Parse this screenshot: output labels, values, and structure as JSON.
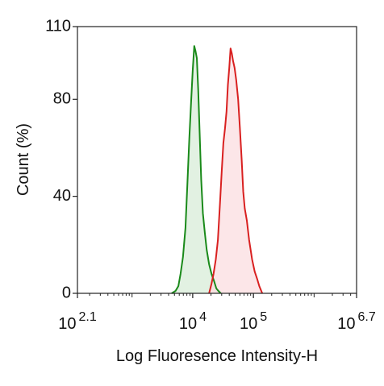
{
  "chart_data": {
    "type": "area",
    "xlabel": "Log Fluoresence Intensity-H",
    "ylabel": "Count  (%)",
    "x_scale": "log",
    "xlim": [
      125.9,
      5011872
    ],
    "ylim": [
      0,
      110
    ],
    "x_ticks": [
      {
        "value": 125.9,
        "base": "10",
        "exp": "2.1"
      },
      {
        "value": 10000,
        "base": "10",
        "exp": "4"
      },
      {
        "value": 100000,
        "base": "10",
        "exp": "5"
      },
      {
        "value": 5011872,
        "base": "10",
        "exp": "6.7"
      }
    ],
    "y_ticks": [
      0,
      40,
      80,
      110
    ],
    "grid": false,
    "series": [
      {
        "color": "#1a8a1a",
        "fill": "#d8ecd8",
        "x": [
          4500,
          5200,
          5800,
          6300,
          6900,
          7600,
          8200,
          8800,
          9400,
          10000,
          10600,
          11100,
          11700,
          12300,
          13000,
          13800,
          14700,
          15800,
          17000,
          18600,
          20400,
          22500,
          24500,
          26500,
          29000
        ],
        "y": [
          0,
          1,
          3,
          8,
          15,
          27,
          46,
          64,
          79,
          92,
          102,
          100,
          97,
          84,
          66,
          47,
          33,
          25,
          18,
          12,
          8,
          5,
          2,
          1,
          0
        ]
      },
      {
        "color": "#d92020",
        "fill": "#fbdde0",
        "x": [
          18600,
          20400,
          22000,
          24000,
          26000,
          28000,
          30000,
          32000,
          34000,
          36000,
          38000,
          40000,
          42000,
          44000,
          46000,
          49000,
          52000,
          56000,
          60000,
          64000,
          68000,
          72000,
          78000,
          85000,
          95000,
          105000,
          115000,
          125000,
          140000
        ],
        "y": [
          0,
          4,
          8,
          14,
          22,
          36,
          50,
          62,
          68,
          75,
          86,
          93,
          101,
          99,
          96,
          93,
          88,
          80,
          68,
          55,
          42,
          35,
          30,
          22,
          14,
          9,
          6,
          3,
          0
        ]
      }
    ]
  }
}
